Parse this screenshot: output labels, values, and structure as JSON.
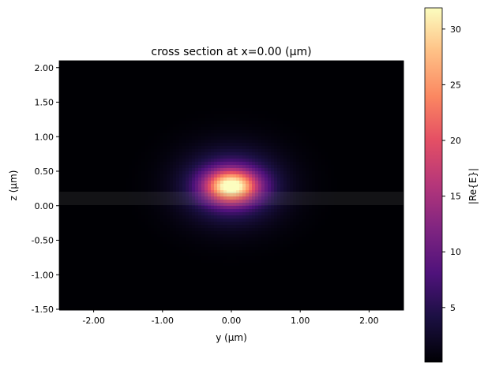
{
  "chart_data": {
    "type": "heatmap",
    "title": "cross section at x=0.00 (μm)",
    "xlabel": "y (μm)",
    "ylabel": "z (μm)",
    "xlim": [
      -2.5,
      2.5
    ],
    "ylim": [
      -1.5,
      2.1
    ],
    "xticks": [
      -2,
      -1,
      0,
      1,
      2
    ],
    "xtick_labels": [
      "-2.00",
      "-1.00",
      "0.00",
      "1.00",
      "2.00"
    ],
    "yticks": [
      2,
      1.5,
      1,
      0.5,
      0,
      -0.5,
      -1,
      -1.5
    ],
    "ytick_labels": [
      "2.00",
      "1.50",
      "1.00",
      "0.50",
      "0.00",
      "-0.50",
      "-1.00",
      "-1.50"
    ],
    "colormap": "magma",
    "colorbar": {
      "label": "|Re{E}|",
      "range": [
        0.1,
        31.9
      ],
      "ticks": [
        5,
        10,
        15,
        20,
        25,
        30
      ],
      "tick_labels": [
        "5",
        "10",
        "15",
        "20",
        "25",
        "30"
      ]
    },
    "field": {
      "peak_y": 0.0,
      "peak_z": 0.28,
      "peak_value": 31.9,
      "core_extent_y": [
        -0.45,
        0.45
      ],
      "core_extent_z": [
        0.05,
        0.5
      ],
      "halo_extent_y": [
        -0.85,
        0.85
      ],
      "halo_extent_z": [
        -0.45,
        0.85
      ]
    },
    "structure_overlay": {
      "z_range": [
        0.0,
        0.22
      ],
      "color": "#808080"
    }
  }
}
